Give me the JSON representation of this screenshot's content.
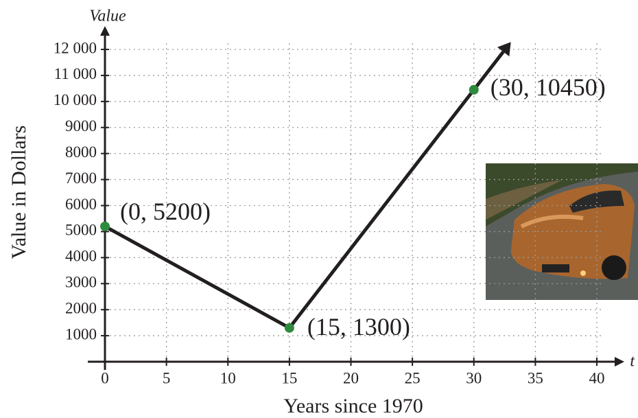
{
  "chart_data": {
    "type": "line",
    "y_axis_symbol": "Value",
    "x_axis_symbol": "t",
    "y_label": "Value in Dollars",
    "x_label": "Years since 1970",
    "x": [
      0,
      15,
      30
    ],
    "values": [
      5200,
      1300,
      10450
    ],
    "value_labels": [
      "(0, 5200)",
      "(15, 1300)",
      "(30, 10450)"
    ],
    "color": "#231f20",
    "point_color": "#2e8b3e",
    "xlim": [
      0,
      40
    ],
    "ylim": [
      0,
      12000
    ],
    "xticks": [
      0,
      5,
      10,
      15,
      20,
      25,
      30,
      35,
      40
    ],
    "yticks": [
      1000,
      2000,
      3000,
      4000,
      5000,
      6000,
      7000,
      8000,
      9000,
      {
        "value": 10000,
        "label": "10 000"
      },
      {
        "value": 11000,
        "label": "11 000"
      },
      {
        "value": 12000,
        "label": "12 000"
      }
    ],
    "grid": true
  }
}
